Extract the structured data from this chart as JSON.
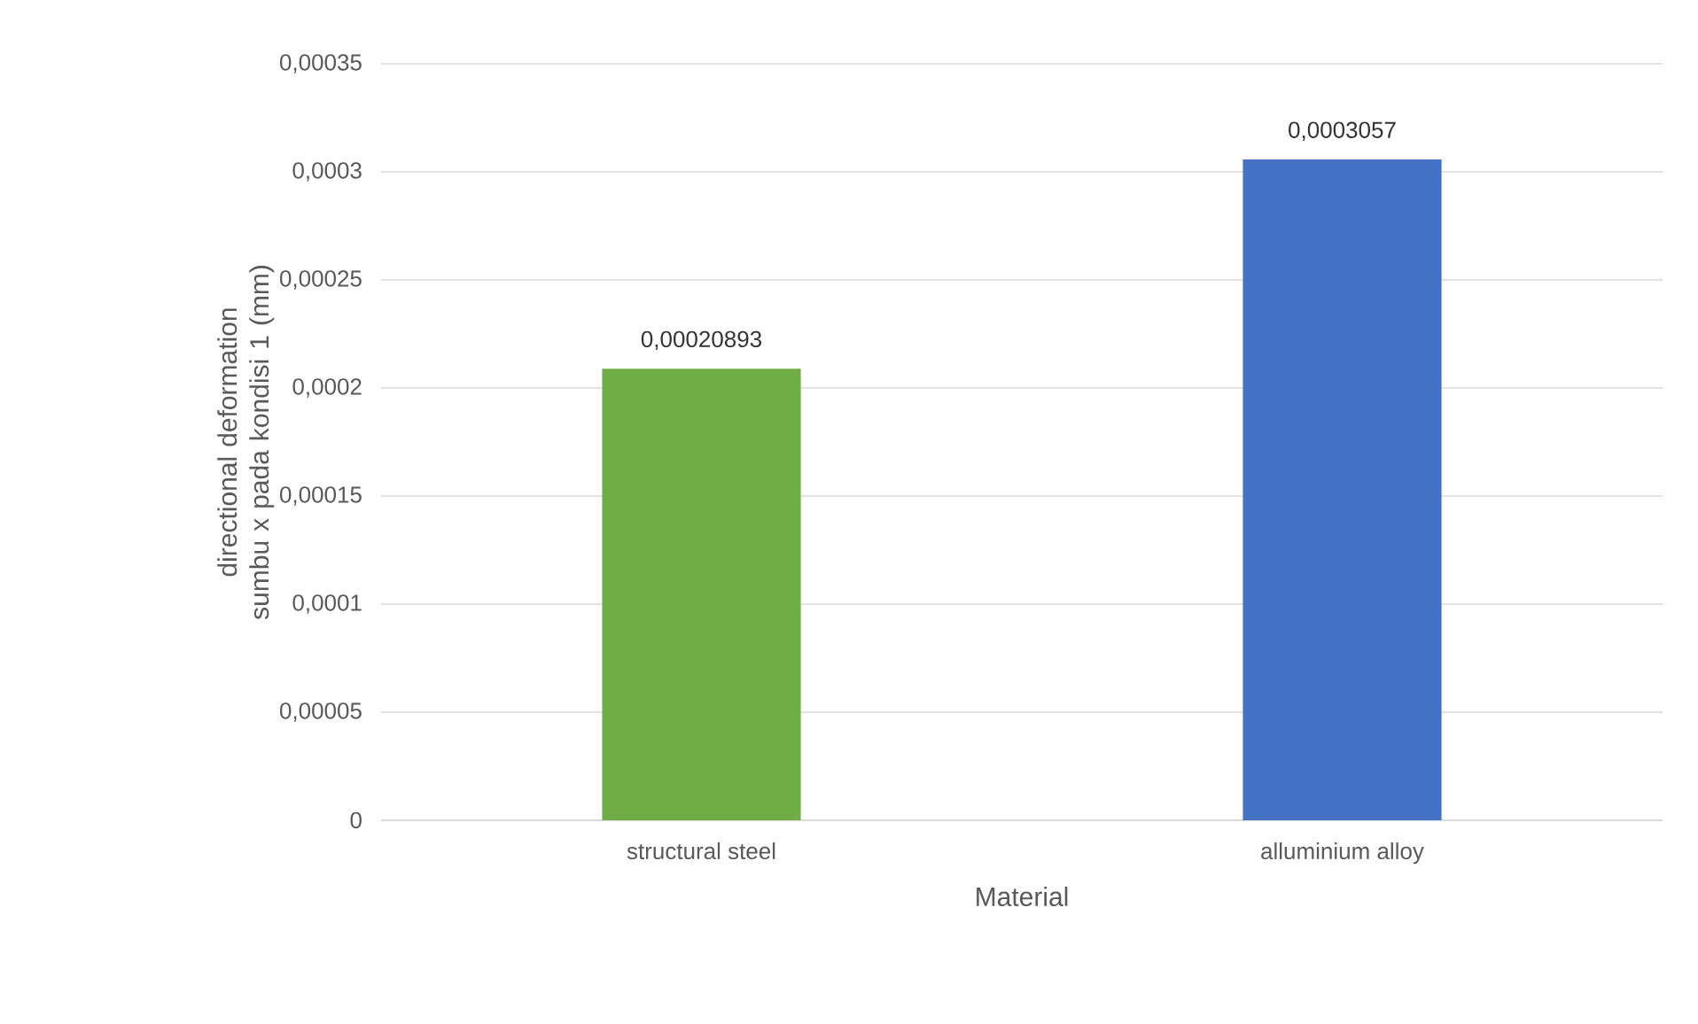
{
  "chart_data": {
    "type": "bar",
    "xlabel": "Material",
    "ylabel": "directional deformation sumbu x pada kondisi 1 (mm)",
    "categories": [
      "structural steel",
      "alluminium alloy"
    ],
    "values": [
      0.00020893,
      0.0003057
    ],
    "colors": [
      "#70ad47",
      "#4472c4"
    ],
    "value_labels": [
      "0,00020893",
      "0,0003057"
    ],
    "ylim": [
      0,
      0.00035
    ],
    "yticks": [
      0,
      {
        "value": 5e-05,
        "label": "0,00005"
      },
      {
        "value": 0.0001,
        "label": "0,0001"
      },
      {
        "value": 0.00015,
        "label": "0,00015"
      },
      {
        "value": 0.0002,
        "label": "0,0002"
      },
      {
        "value": 0.00025,
        "label": "0,00025"
      },
      {
        "value": 0.0003,
        "label": "0,0003"
      },
      {
        "value": 0.00035,
        "label": "0,00035"
      }
    ],
    "grid": "y"
  }
}
